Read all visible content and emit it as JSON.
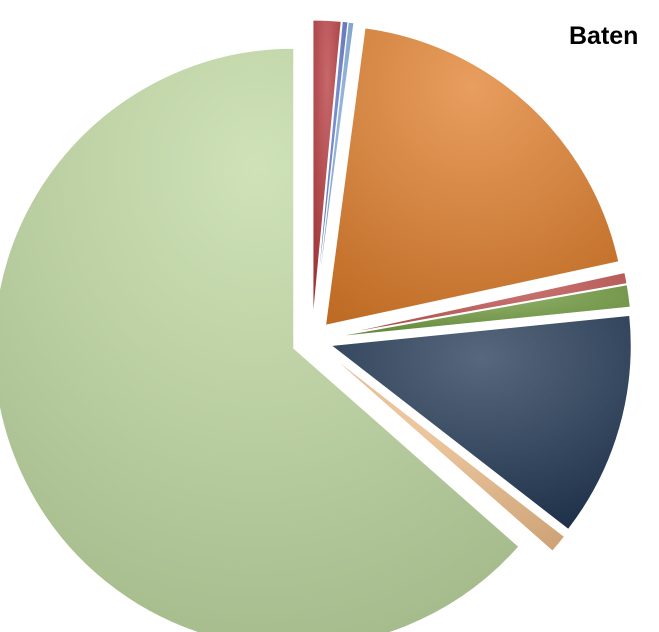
{
  "chart_data": {
    "type": "pie",
    "title": "Baten",
    "categories": [
      "",
      "",
      "",
      "",
      "",
      "",
      "",
      "",
      ""
    ],
    "values": [
      1.5,
      0.3,
      0.3,
      19.5,
      0.6,
      1.2,
      12.1,
      1.0,
      63.5
    ],
    "colors": [
      "#B4363A",
      "#5B73C4",
      "#7FA8D9",
      "#E07E2A",
      "#C0504D",
      "#6E9A3C",
      "#1F3552",
      "#F2C08C",
      "#BFD8A0"
    ],
    "exploded": true,
    "legend": "none"
  }
}
